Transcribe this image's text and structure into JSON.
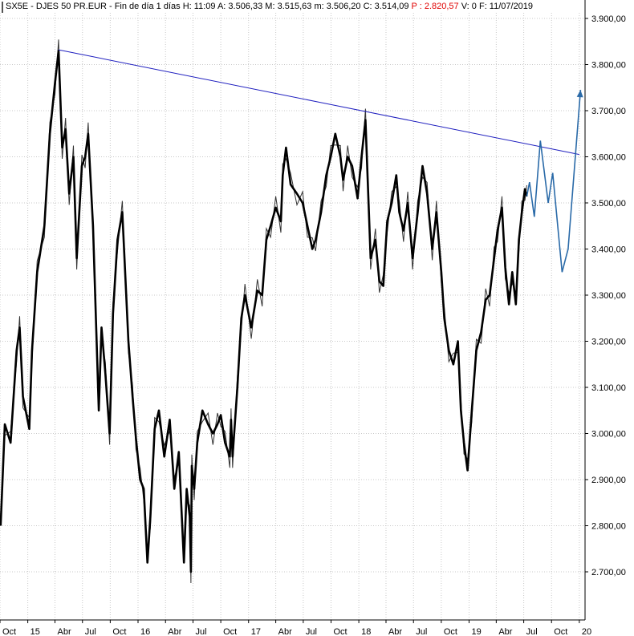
{
  "header": {
    "symbol": "SX5E - DJES 50 PR.EUR - Fin de día 1 días",
    "high": "H: 11:09",
    "open": "A: 3.506,33",
    "max": "M: 3.515,63",
    "min": "m: 3.506,20",
    "close": "C: 3.514,09",
    "p_value": "P : 2.820,57",
    "volume": "V: 0",
    "date": "F: 11/07/2019"
  },
  "colors": {
    "price": "#000000",
    "trendline": "#1f1fbf",
    "projection": "#2a6aa8",
    "grid": "#c8c8c8",
    "p_value": "#e00000"
  },
  "chart_data": {
    "type": "line",
    "title": "",
    "xlabel": "",
    "ylabel": "",
    "ylim": [
      2650,
      3920
    ],
    "grid": true,
    "y_axis_side": "right",
    "y_ticks": [
      2700,
      2800,
      2900,
      3000,
      3100,
      3200,
      3300,
      3400,
      3500,
      3600,
      3700,
      3800,
      3900
    ],
    "y_tick_labels": [
      "2.700,00",
      "2.800,00",
      "2.900,00",
      "3.000,00",
      "3.100,00",
      "3.200,00",
      "3.300,00",
      "3.400,00",
      "3.500,00",
      "3.600,00",
      "3.700,00",
      "3.800,00",
      "3.900,00"
    ],
    "x_range": [
      "2014-10-01",
      "2020-01-20"
    ],
    "x_ticks": [
      {
        "date": "2014-10-01",
        "label": "Oct"
      },
      {
        "date": "2015-01-01",
        "label": "15"
      },
      {
        "date": "2015-04-01",
        "label": "Abr"
      },
      {
        "date": "2015-07-01",
        "label": "Jul"
      },
      {
        "date": "2015-10-01",
        "label": "Oct"
      },
      {
        "date": "2016-01-01",
        "label": "16"
      },
      {
        "date": "2016-04-01",
        "label": "Abr"
      },
      {
        "date": "2016-07-01",
        "label": "Jul"
      },
      {
        "date": "2016-10-01",
        "label": "Oct"
      },
      {
        "date": "2017-01-01",
        "label": "17"
      },
      {
        "date": "2017-04-01",
        "label": "Abr"
      },
      {
        "date": "2017-07-01",
        "label": "Jul"
      },
      {
        "date": "2017-10-01",
        "label": "Oct"
      },
      {
        "date": "2018-01-01",
        "label": "18"
      },
      {
        "date": "2018-04-01",
        "label": "Abr"
      },
      {
        "date": "2018-07-01",
        "label": "Jul"
      },
      {
        "date": "2018-10-01",
        "label": "Oct"
      },
      {
        "date": "2019-01-01",
        "label": "19"
      },
      {
        "date": "2019-04-01",
        "label": "Abr"
      },
      {
        "date": "2019-07-01",
        "label": "Jul"
      },
      {
        "date": "2019-10-01",
        "label": "Oct"
      },
      {
        "date": "2020-01-01",
        "label": "20"
      }
    ],
    "series": [
      {
        "role": "price",
        "x": [
          "2014-10-03",
          "2014-10-17",
          "2014-11-05",
          "2014-11-25",
          "2014-12-05",
          "2014-12-16",
          "2015-01-06",
          "2015-01-15",
          "2015-02-01",
          "2015-02-25",
          "2015-03-15",
          "2015-04-01",
          "2015-04-13",
          "2015-04-25",
          "2015-05-06",
          "2015-05-18",
          "2015-06-01",
          "2015-06-12",
          "2015-06-29",
          "2015-07-10",
          "2015-07-20",
          "2015-08-05",
          "2015-08-24",
          "2015-09-02",
          "2015-09-15",
          "2015-09-29",
          "2015-10-10",
          "2015-10-25",
          "2015-11-10",
          "2015-11-30",
          "2015-12-14",
          "2015-12-25",
          "2016-01-08",
          "2016-01-20",
          "2016-02-01",
          "2016-02-11",
          "2016-02-25",
          "2016-03-10",
          "2016-03-28",
          "2016-04-15",
          "2016-04-30",
          "2016-05-15",
          "2016-06-01",
          "2016-06-10",
          "2016-06-20",
          "2016-06-24",
          "2016-06-27",
          "2016-07-05",
          "2016-07-15",
          "2016-08-01",
          "2016-08-20",
          "2016-09-05",
          "2016-09-20",
          "2016-10-01",
          "2016-10-15",
          "2016-10-31",
          "2016-11-04",
          "2016-11-09",
          "2016-11-25",
          "2016-12-08",
          "2016-12-20",
          "2017-01-10",
          "2017-01-30",
          "2017-02-15",
          "2017-03-01",
          "2017-03-15",
          "2017-04-01",
          "2017-04-18",
          "2017-04-24",
          "2017-05-05",
          "2017-05-20",
          "2017-06-10",
          "2017-06-29",
          "2017-07-15",
          "2017-07-31",
          "2017-08-11",
          "2017-08-29",
          "2017-09-15",
          "2017-09-30",
          "2017-10-15",
          "2017-11-01",
          "2017-11-10",
          "2017-11-25",
          "2017-12-10",
          "2017-12-28",
          "2018-01-10",
          "2018-01-23",
          "2018-02-09",
          "2018-02-25",
          "2018-03-10",
          "2018-03-23",
          "2018-04-05",
          "2018-04-20",
          "2018-05-05",
          "2018-05-15",
          "2018-05-29",
          "2018-06-12",
          "2018-06-28",
          "2018-07-15",
          "2018-07-31",
          "2018-08-15",
          "2018-09-01",
          "2018-09-15",
          "2018-10-01",
          "2018-10-11",
          "2018-10-26",
          "2018-11-10",
          "2018-11-25",
          "2018-12-05",
          "2018-12-15",
          "2018-12-27",
          "2019-01-10",
          "2019-01-25",
          "2019-02-10",
          "2019-02-25",
          "2019-03-10",
          "2019-03-25",
          "2019-04-05",
          "2019-04-20",
          "2019-05-01",
          "2019-05-13",
          "2019-05-24",
          "2019-06-05",
          "2019-06-15",
          "2019-06-25",
          "2019-07-05",
          "2019-07-11"
        ],
        "y": [
          2800,
          3020,
          2980,
          3180,
          3230,
          3080,
          3010,
          3180,
          3350,
          3450,
          3650,
          3760,
          3830,
          3620,
          3660,
          3520,
          3600,
          3380,
          3580,
          3600,
          3650,
          3450,
          3050,
          3230,
          3130,
          3000,
          3260,
          3420,
          3480,
          3200,
          3080,
          2990,
          2900,
          2880,
          2720,
          2820,
          3010,
          3050,
          2950,
          3030,
          2880,
          2960,
          2720,
          2880,
          2820,
          2700,
          2930,
          2880,
          2980,
          3050,
          3020,
          3000,
          3020,
          3040,
          2980,
          2950,
          3030,
          2950,
          3100,
          3250,
          3300,
          3230,
          3310,
          3300,
          3420,
          3450,
          3490,
          3460,
          3560,
          3620,
          3540,
          3520,
          3500,
          3450,
          3400,
          3420,
          3480,
          3560,
          3600,
          3650,
          3600,
          3550,
          3600,
          3580,
          3510,
          3600,
          3680,
          3380,
          3420,
          3330,
          3320,
          3460,
          3500,
          3560,
          3480,
          3440,
          3500,
          3380,
          3480,
          3580,
          3520,
          3400,
          3480,
          3350,
          3250,
          3180,
          3150,
          3200,
          3050,
          2980,
          2920,
          3050,
          3180,
          3220,
          3290,
          3300,
          3380,
          3440,
          3490,
          3360,
          3280,
          3350,
          3280,
          3420,
          3480,
          3530,
          3514
        ]
      },
      {
        "role": "trendline",
        "x": [
          "2015-04-13",
          "2020-01-01"
        ],
        "y": [
          3832,
          3605
        ]
      },
      {
        "role": "projection",
        "x": [
          "2019-07-11",
          "2019-07-20",
          "2019-08-05",
          "2019-08-25",
          "2019-09-20",
          "2019-10-05",
          "2019-11-05",
          "2019-11-25",
          "2020-01-05"
        ],
        "y": [
          3514,
          3545,
          3470,
          3635,
          3500,
          3565,
          3350,
          3400,
          3745
        ]
      }
    ]
  }
}
